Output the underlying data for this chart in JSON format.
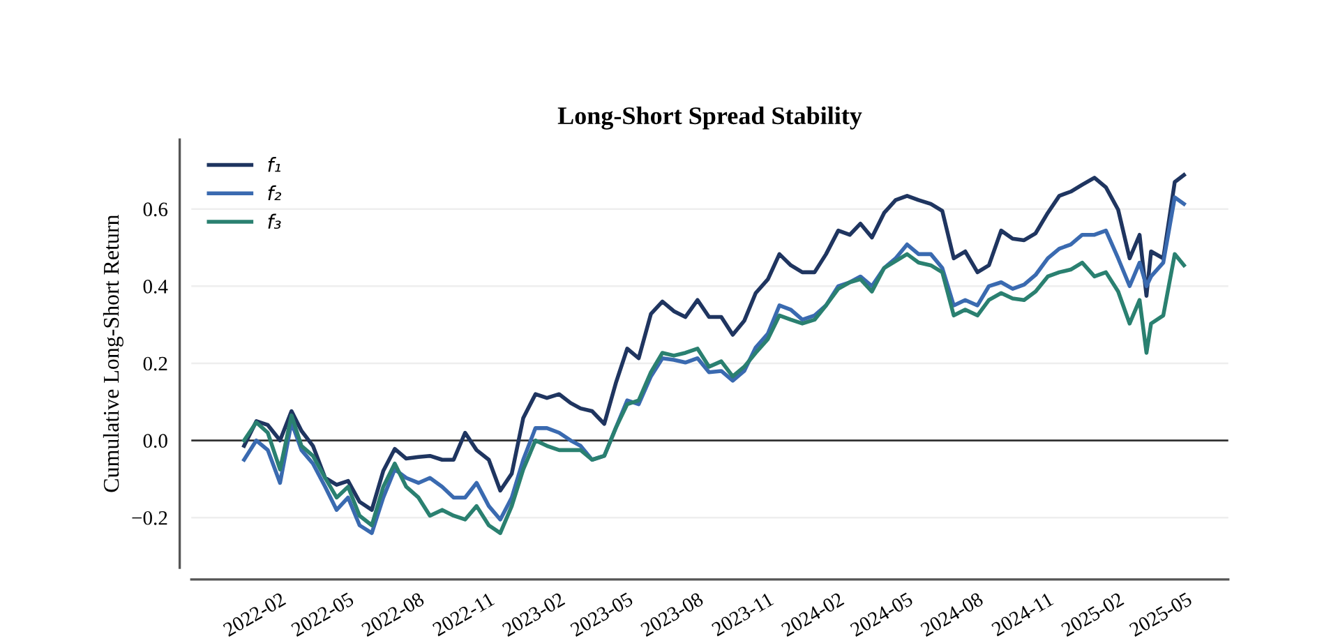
{
  "chart_data": {
    "type": "line",
    "title": "Long-Short Spread Stability",
    "ylabel": "Cumulative Long-Short Return",
    "x": [
      "2021-12-16",
      "2022-01-01",
      "2022-01-16",
      "2022-02-01",
      "2022-02-16",
      "2022-03-01",
      "2022-03-16",
      "2022-04-01",
      "2022-04-16",
      "2022-05-01",
      "2022-05-16",
      "2022-06-01",
      "2022-06-16",
      "2022-07-01",
      "2022-07-16",
      "2022-08-01",
      "2022-08-16",
      "2022-09-01",
      "2022-09-16",
      "2022-10-01",
      "2022-10-16",
      "2022-11-01",
      "2022-11-16",
      "2022-12-01",
      "2022-12-16",
      "2023-01-01",
      "2023-01-16",
      "2023-02-01",
      "2023-02-16",
      "2023-03-01",
      "2023-03-16",
      "2023-04-01",
      "2023-04-16",
      "2023-05-01",
      "2023-05-16",
      "2023-06-01",
      "2023-06-16",
      "2023-07-01",
      "2023-07-16",
      "2023-08-01",
      "2023-08-16",
      "2023-09-01",
      "2023-09-16",
      "2023-10-01",
      "2023-10-16",
      "2023-11-01",
      "2023-11-16",
      "2023-12-01",
      "2023-12-16",
      "2024-01-01",
      "2024-01-16",
      "2024-02-01",
      "2024-02-16",
      "2024-03-01",
      "2024-03-16",
      "2024-04-01",
      "2024-04-16",
      "2024-05-01",
      "2024-05-16",
      "2024-06-01",
      "2024-06-16",
      "2024-07-01",
      "2024-07-16",
      "2024-08-01",
      "2024-08-16",
      "2024-09-01",
      "2024-09-16",
      "2024-10-01",
      "2024-10-16",
      "2024-11-01",
      "2024-11-16",
      "2024-12-01",
      "2024-12-16",
      "2025-01-01",
      "2025-01-16",
      "2025-02-01",
      "2025-02-16",
      "2025-03-01",
      "2025-03-10",
      "2025-03-16",
      "2025-04-01",
      "2025-04-16",
      "2025-04-28"
    ],
    "series": [
      {
        "name": "f₁",
        "color": "#1f3560",
        "values": [
          -0.014,
          0.05,
          0.04,
          0.0,
          0.076,
          0.025,
          -0.014,
          -0.097,
          -0.115,
          -0.105,
          -0.159,
          -0.18,
          -0.079,
          -0.022,
          -0.047,
          -0.043,
          -0.04,
          -0.05,
          -0.05,
          0.02,
          -0.025,
          -0.05,
          -0.13,
          -0.086,
          0.058,
          0.12,
          0.11,
          0.12,
          0.097,
          0.083,
          0.076,
          0.043,
          0.148,
          0.238,
          0.213,
          0.328,
          0.36,
          0.335,
          0.32,
          0.364,
          0.32,
          0.32,
          0.274,
          0.31,
          0.382,
          0.418,
          0.483,
          0.454,
          0.436,
          0.436,
          0.483,
          0.544,
          0.533,
          0.562,
          0.526,
          0.59,
          0.623,
          0.634,
          0.623,
          0.613,
          0.595,
          0.472,
          0.49,
          0.436,
          0.454,
          0.544,
          0.523,
          0.519,
          0.537,
          0.59,
          0.634,
          0.645,
          0.663,
          0.681,
          0.656,
          0.598,
          0.472,
          0.533,
          0.375,
          0.49,
          0.472,
          0.67,
          0.688
        ]
      },
      {
        "name": "f₂",
        "color": "#3a6ab0",
        "values": [
          -0.05,
          0.0,
          -0.025,
          -0.11,
          0.047,
          -0.025,
          -0.06,
          -0.12,
          -0.18,
          -0.148,
          -0.22,
          -0.24,
          -0.148,
          -0.075,
          -0.097,
          -0.11,
          -0.097,
          -0.12,
          -0.148,
          -0.148,
          -0.11,
          -0.17,
          -0.205,
          -0.148,
          -0.05,
          0.032,
          0.032,
          0.02,
          0.0,
          -0.014,
          -0.05,
          -0.04,
          0.032,
          0.104,
          0.094,
          0.166,
          0.213,
          0.209,
          0.202,
          0.213,
          0.177,
          0.18,
          0.155,
          0.18,
          0.241,
          0.277,
          0.35,
          0.339,
          0.313,
          0.324,
          0.35,
          0.4,
          0.41,
          0.425,
          0.4,
          0.447,
          0.472,
          0.508,
          0.483,
          0.483,
          0.447,
          0.35,
          0.364,
          0.35,
          0.4,
          0.41,
          0.393,
          0.404,
          0.429,
          0.472,
          0.497,
          0.508,
          0.533,
          0.533,
          0.544,
          0.472,
          0.4,
          0.461,
          0.4,
          0.425,
          0.461,
          0.63,
          0.613
        ]
      },
      {
        "name": "f₃",
        "color": "#2a8070",
        "values": [
          0.0,
          0.047,
          0.02,
          -0.075,
          0.065,
          -0.014,
          -0.04,
          -0.097,
          -0.148,
          -0.12,
          -0.195,
          -0.22,
          -0.12,
          -0.06,
          -0.12,
          -0.148,
          -0.195,
          -0.18,
          -0.195,
          -0.205,
          -0.17,
          -0.22,
          -0.24,
          -0.17,
          -0.075,
          0.0,
          -0.014,
          -0.025,
          -0.025,
          -0.025,
          -0.05,
          -0.04,
          0.032,
          0.094,
          0.104,
          0.177,
          0.227,
          0.22,
          0.227,
          0.238,
          0.191,
          0.205,
          0.166,
          0.191,
          0.227,
          0.263,
          0.324,
          0.313,
          0.303,
          0.313,
          0.35,
          0.393,
          0.41,
          0.418,
          0.386,
          0.447,
          0.465,
          0.483,
          0.461,
          0.454,
          0.436,
          0.324,
          0.339,
          0.324,
          0.364,
          0.382,
          0.368,
          0.364,
          0.386,
          0.425,
          0.436,
          0.443,
          0.461,
          0.425,
          0.436,
          0.386,
          0.303,
          0.364,
          0.227,
          0.303,
          0.324,
          0.483,
          0.454
        ]
      }
    ],
    "xlim": [
      "2021-10-08",
      "2025-06-25"
    ],
    "ylim": [
      -0.33,
      0.78
    ],
    "xticks": [
      "2022-02",
      "2022-05",
      "2022-08",
      "2022-11",
      "2023-02",
      "2023-05",
      "2023-08",
      "2023-11",
      "2024-02",
      "2024-05",
      "2024-08",
      "2024-11",
      "2025-02",
      "2025-05"
    ],
    "yticks": [
      {
        "value": -0.2,
        "label": "−0.2"
      },
      {
        "value": 0,
        "label": "0.0"
      },
      0.2,
      0.4,
      0.6
    ],
    "ref_lines": [
      {
        "axis": "y",
        "value": 0,
        "color": "#333333"
      }
    ],
    "grid": "y",
    "legend": "top left",
    "line_style": "solid",
    "marker": "none"
  }
}
